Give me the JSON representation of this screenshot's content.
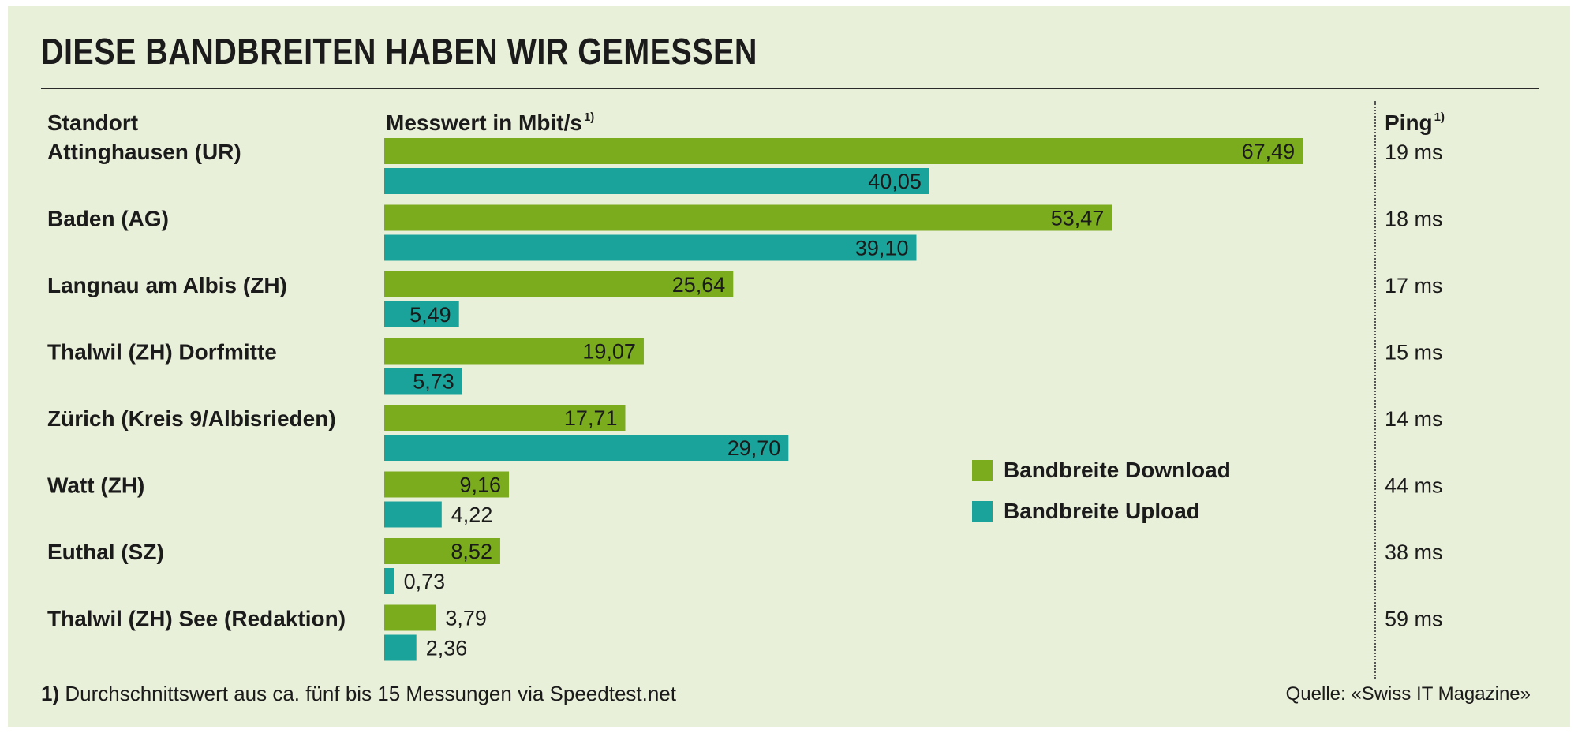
{
  "title": "DIESE BANDBREITEN HABEN WIR GEMESSEN",
  "headers": {
    "location": "Standort",
    "value": "Messwert in Mbit/s",
    "value_sup": "1)",
    "ping": "Ping",
    "ping_sup": "1)"
  },
  "colors": {
    "download": "#7aac1e",
    "upload": "#1aa39a",
    "background": "#e9f0d9"
  },
  "chart_data": {
    "type": "bar",
    "orientation": "horizontal",
    "categories": [
      "Attinghausen (UR)",
      "Baden (AG)",
      "Langnau am Albis (ZH)",
      "Thalwil (ZH) Dorfmitte",
      "Zürich (Kreis 9/Albisrieden)",
      "Watt (ZH)",
      "Euthal (SZ)",
      "Thalwil (ZH) See (Redaktion)"
    ],
    "series": [
      {
        "name": "Bandbreite Download",
        "values": [
          67.49,
          53.47,
          25.64,
          19.07,
          17.71,
          9.16,
          8.52,
          3.79
        ],
        "labels": [
          "67,49",
          "53,47",
          "25,64",
          "19,07",
          "17,71",
          "9,16",
          "8,52",
          "3,79"
        ]
      },
      {
        "name": "Bandbreite Upload",
        "values": [
          40.05,
          39.1,
          5.49,
          5.73,
          29.7,
          4.22,
          0.73,
          2.36
        ],
        "labels": [
          "40,05",
          "39,10",
          "5,49",
          "5,73",
          "29,70",
          "4,22",
          "0,73",
          "2,36"
        ]
      }
    ],
    "ping": [
      "19 ms",
      "18 ms",
      "17 ms",
      "15 ms",
      "14 ms",
      "44 ms",
      "38 ms",
      "59 ms"
    ],
    "xlim": [
      0,
      70
    ],
    "legend_position": "center-right",
    "grid": false
  },
  "legend": {
    "download": "Bandbreite Download",
    "upload": "Bandbreite Upload"
  },
  "footnote": {
    "marker": "1)",
    "text": " Durchschnittswert aus ca. fünf bis 15 Messungen via Speedtest.net"
  },
  "source": "Quelle: «Swiss IT Magazine»"
}
